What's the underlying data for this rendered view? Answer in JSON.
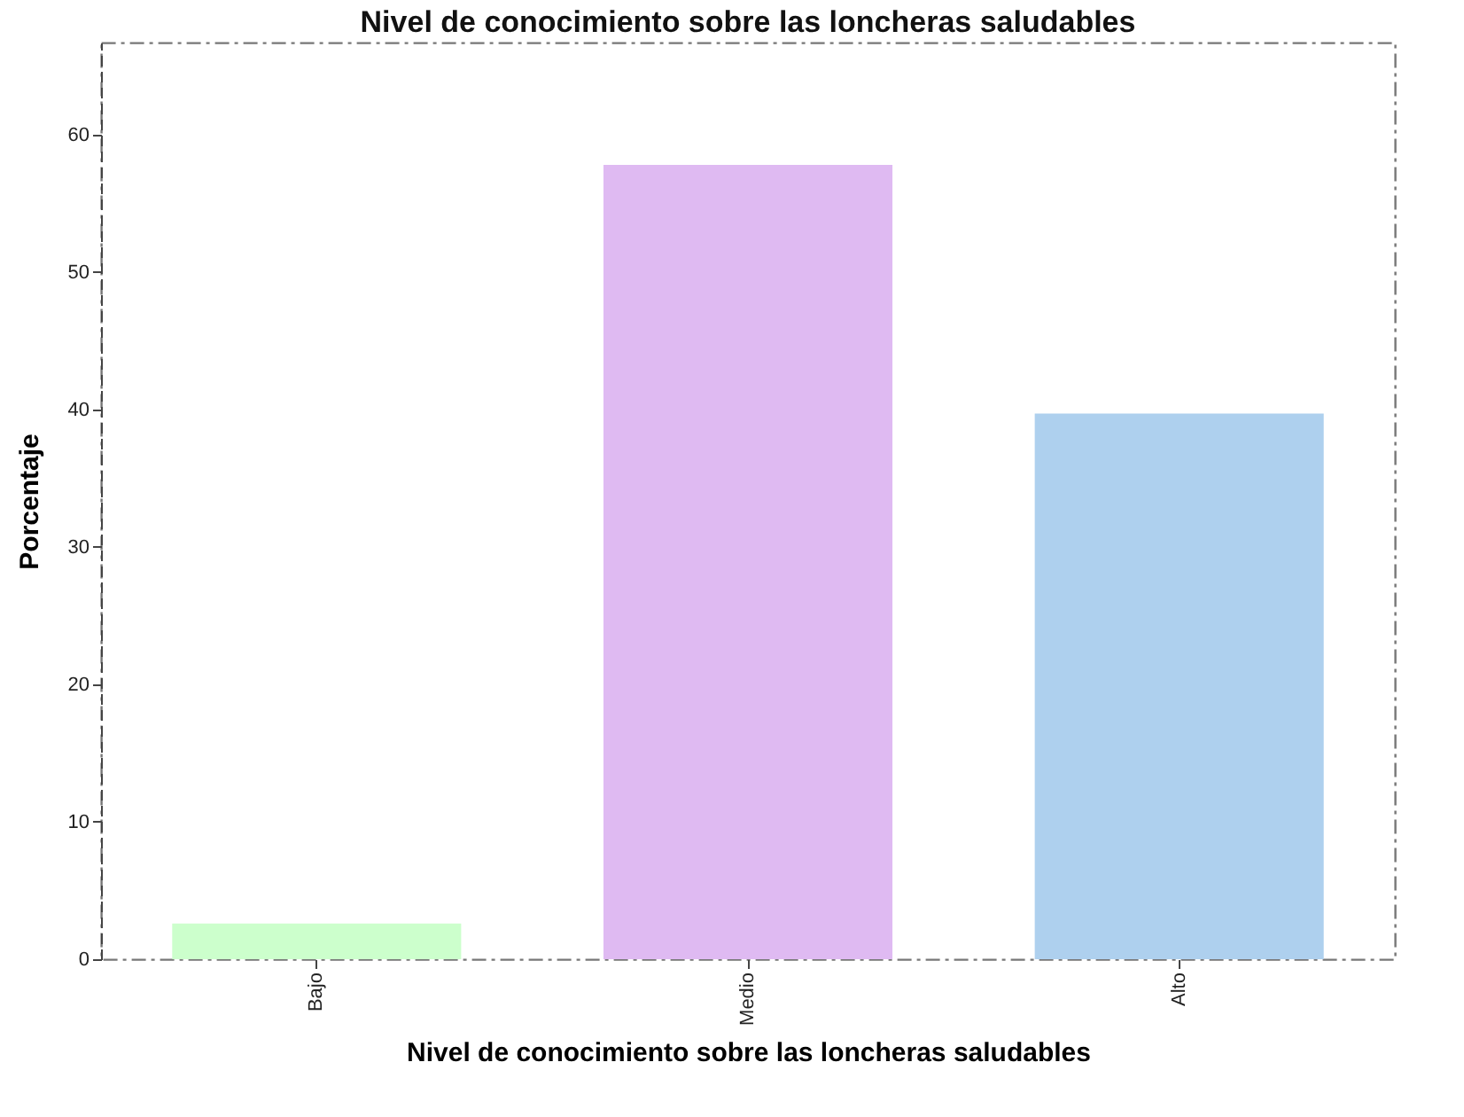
{
  "chart_data": {
    "type": "bar",
    "title": "Nivel de conocimiento sobre las loncheras saludables",
    "xlabel": "Nivel de conocimiento sobre las loncheras saludables",
    "ylabel": "Porcentaje",
    "categories": [
      "Bajo",
      "Medio",
      "Alto"
    ],
    "values": [
      2.6,
      57.8,
      39.7
    ],
    "colors": [
      "#ccffcc",
      "#dfbaf2",
      "#aed0ee"
    ],
    "ylim": [
      0,
      66.7
    ],
    "yticks": [
      0,
      10,
      20,
      30,
      40,
      50,
      60
    ],
    "grid": false
  }
}
